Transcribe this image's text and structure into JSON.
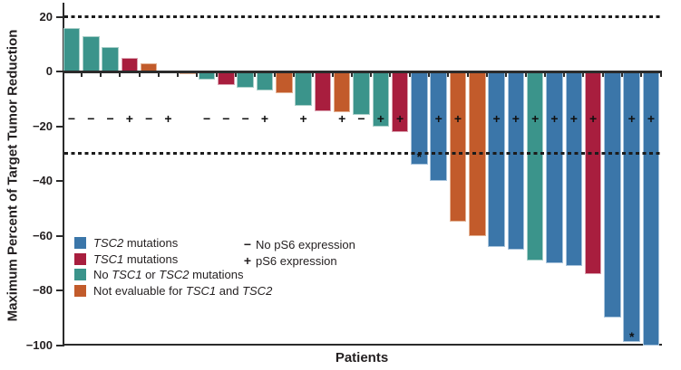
{
  "chart_data": {
    "type": "bar",
    "subtype": "waterfall",
    "title": "",
    "xlabel": "Patients",
    "ylabel": "Maximum Percent of Target Tumor Reduction",
    "ylim": [
      -100,
      23
    ],
    "yticks": [
      20,
      0,
      -20,
      -40,
      -60,
      -80,
      -100
    ],
    "reference_dashed_lines_y": [
      20,
      -30
    ],
    "ps6_symbol_row_y": -17.5,
    "grid": false,
    "legend_position": "lower-left-inside",
    "group_colors": {
      "blue": "#3b76a9",
      "red": "#a81e3e",
      "teal": "#3b948b",
      "orange": "#c25b2b"
    },
    "legend": [
      {
        "group": "blue",
        "segments": [
          {
            "text": "TSC2",
            "italic": true
          },
          {
            "text": " mutations",
            "italic": false
          }
        ]
      },
      {
        "group": "red",
        "segments": [
          {
            "text": "TSC1",
            "italic": true
          },
          {
            "text": " mutations",
            "italic": false
          }
        ]
      },
      {
        "group": "teal",
        "segments": [
          {
            "text": "No ",
            "italic": false
          },
          {
            "text": "TSC1",
            "italic": true
          },
          {
            "text": " or ",
            "italic": false
          },
          {
            "text": "TSC2",
            "italic": true
          },
          {
            "text": " mutations",
            "italic": false
          }
        ]
      },
      {
        "group": "orange",
        "segments": [
          {
            "text": "Not evaluable for ",
            "italic": false
          },
          {
            "text": "TSC1",
            "italic": true
          },
          {
            "text": " and ",
            "italic": false
          },
          {
            "text": "TSC2",
            "italic": true
          }
        ]
      }
    ],
    "ps6_legend": [
      {
        "symbol": "−",
        "label": "No pS6 expression"
      },
      {
        "symbol": "+",
        "label": "pS6 expression"
      }
    ],
    "patients": [
      {
        "value": 16,
        "group": "teal",
        "ps6": "−",
        "star_y": null
      },
      {
        "value": 13,
        "group": "teal",
        "ps6": "−",
        "star_y": null
      },
      {
        "value": 9,
        "group": "teal",
        "ps6": "−",
        "star_y": null
      },
      {
        "value": 5,
        "group": "red",
        "ps6": "+",
        "star_y": null
      },
      {
        "value": 3,
        "group": "orange",
        "ps6": "−",
        "star_y": null
      },
      {
        "value": 0,
        "group": null,
        "ps6": "+",
        "star_y": null
      },
      {
        "value": -1,
        "group": "orange",
        "ps6": null,
        "star_y": null
      },
      {
        "value": -3,
        "group": "teal",
        "ps6": "−",
        "star_y": null
      },
      {
        "value": -5,
        "group": "red",
        "ps6": "−",
        "star_y": null
      },
      {
        "value": -6,
        "group": "teal",
        "ps6": "−",
        "star_y": null
      },
      {
        "value": -7,
        "group": "teal",
        "ps6": "+",
        "star_y": null
      },
      {
        "value": -8,
        "group": "orange",
        "ps6": null,
        "star_y": null
      },
      {
        "value": -12.5,
        "group": "teal",
        "ps6": "+",
        "star_y": null
      },
      {
        "value": -14.5,
        "group": "red",
        "ps6": null,
        "star_y": null
      },
      {
        "value": -15,
        "group": "orange",
        "ps6": "+",
        "star_y": null
      },
      {
        "value": -16,
        "group": "teal",
        "ps6": "−",
        "star_y": null
      },
      {
        "value": -20,
        "group": "teal",
        "ps6": "+",
        "star_y": null
      },
      {
        "value": -22,
        "group": "red",
        "ps6": "+",
        "star_y": null
      },
      {
        "value": -34,
        "group": "blue",
        "ps6": null,
        "star_y": -31
      },
      {
        "value": -40,
        "group": "blue",
        "ps6": "+",
        "star_y": null
      },
      {
        "value": -55,
        "group": "orange",
        "ps6": "+",
        "star_y": null
      },
      {
        "value": -60,
        "group": "orange",
        "ps6": null,
        "star_y": null
      },
      {
        "value": -64,
        "group": "blue",
        "ps6": "+",
        "star_y": null
      },
      {
        "value": -65,
        "group": "blue",
        "ps6": "+",
        "star_y": null
      },
      {
        "value": -69,
        "group": "teal",
        "ps6": "+",
        "star_y": null
      },
      {
        "value": -70,
        "group": "blue",
        "ps6": "+",
        "star_y": null
      },
      {
        "value": -71,
        "group": "blue",
        "ps6": "+",
        "star_y": null
      },
      {
        "value": -74,
        "group": "red",
        "ps6": "+",
        "star_y": null
      },
      {
        "value": -90,
        "group": "blue",
        "ps6": null,
        "star_y": null
      },
      {
        "value": -99,
        "group": "blue",
        "ps6": "+",
        "star_y": -97
      },
      {
        "value": -100,
        "group": "blue",
        "ps6": "+",
        "star_y": null
      }
    ]
  }
}
